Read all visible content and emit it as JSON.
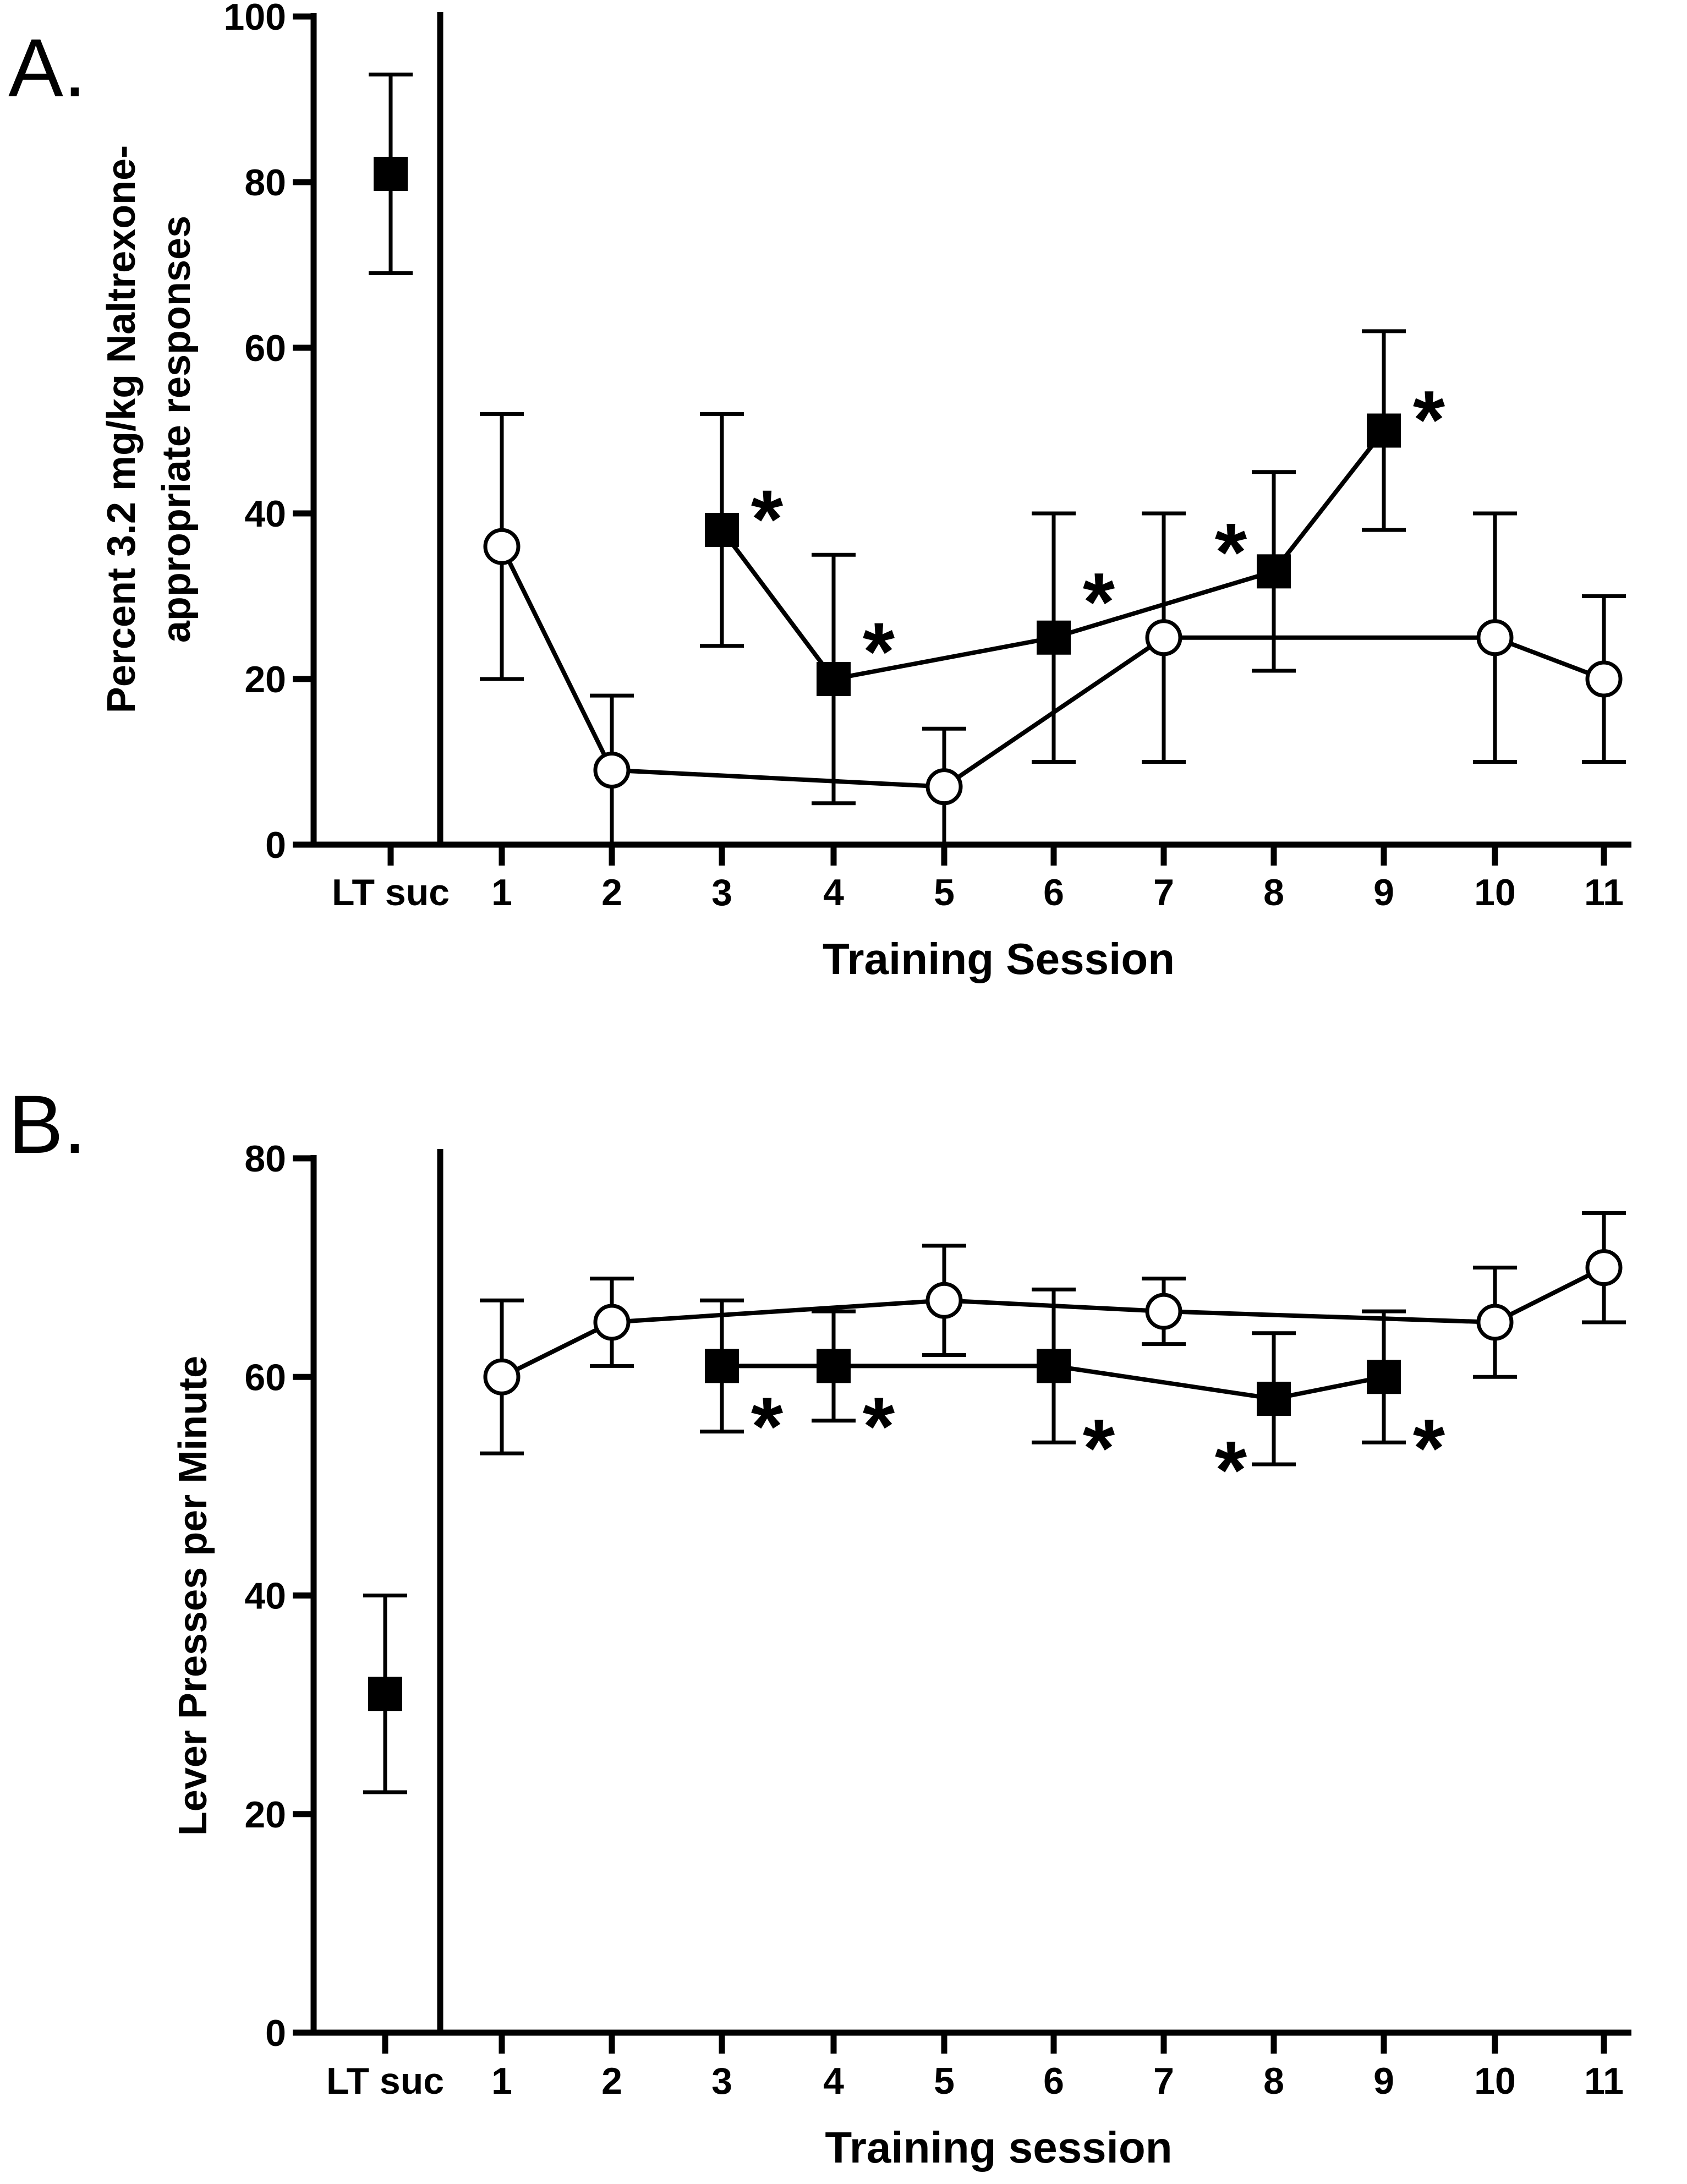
{
  "chart_data": [
    {
      "panel_label": "A.",
      "type": "scatter",
      "xlabel": "Training Session",
      "ylabel_lines": [
        "Percent 3.2 mg/kg Naltrexone-",
        "appropriate responses"
      ],
      "ylim": [
        0,
        100
      ],
      "yticks": [
        0,
        20,
        40,
        60,
        80,
        100
      ],
      "xcategories": [
        "LT suc",
        "1",
        "2",
        "3",
        "4",
        "5",
        "6",
        "7",
        "8",
        "9",
        "10",
        "11"
      ],
      "series": [
        {
          "marker": "open-circle",
          "connected": true,
          "points": [
            {
              "x": "1",
              "y": 36,
              "err_low": 20,
              "err_high": 52
            },
            {
              "x": "2",
              "y": 9,
              "err_low": 0,
              "err_high": 18
            },
            {
              "x": "5",
              "y": 7,
              "err_low": 0,
              "err_high": 14
            },
            {
              "x": "7",
              "y": 25,
              "err_low": 10,
              "err_high": 40
            },
            {
              "x": "10",
              "y": 25,
              "err_low": 10,
              "err_high": 40
            },
            {
              "x": "11",
              "y": 20,
              "err_low": 10,
              "err_high": 30
            }
          ]
        },
        {
          "marker": "filled-square",
          "connected": true,
          "points": [
            {
              "x": "3",
              "y": 38,
              "err_low": 24,
              "err_high": 52
            },
            {
              "x": "4",
              "y": 20,
              "err_low": 5,
              "err_high": 35
            },
            {
              "x": "6",
              "y": 25,
              "err_low": 10,
              "err_high": 40
            },
            {
              "x": "8",
              "y": 33,
              "err_low": 21,
              "err_high": 45
            },
            {
              "x": "9",
              "y": 50,
              "err_low": 38,
              "err_high": 62
            }
          ]
        },
        {
          "marker": "filled-square",
          "connected": false,
          "points": [
            {
              "x": "LT suc",
              "y": 81,
              "err_low": 69,
              "err_high": 93
            }
          ]
        }
      ],
      "annotations": [
        {
          "text": "*",
          "x": "3",
          "side": "right",
          "y": 40
        },
        {
          "text": "*",
          "x": "4",
          "side": "right",
          "y": 24
        },
        {
          "text": "*",
          "x": "6",
          "side": "right",
          "y": 30
        },
        {
          "text": "*",
          "x": "8",
          "side": "left",
          "y": 36
        },
        {
          "text": "*",
          "x": "9",
          "side": "right",
          "y": 52
        }
      ]
    },
    {
      "panel_label": "B.",
      "type": "scatter",
      "xlabel": "Training session",
      "ylabel_lines": [
        "Lever Presses per Minute"
      ],
      "ylim": [
        0,
        80
      ],
      "yticks": [
        0,
        20,
        40,
        60,
        80
      ],
      "xcategories": [
        "LT suc",
        "1",
        "2",
        "3",
        "4",
        "5",
        "6",
        "7",
        "8",
        "9",
        "10",
        "11"
      ],
      "series": [
        {
          "marker": "open-circle",
          "connected": true,
          "points": [
            {
              "x": "1",
              "y": 60,
              "err_low": 53,
              "err_high": 67
            },
            {
              "x": "2",
              "y": 65,
              "err_low": 61,
              "err_high": 69
            },
            {
              "x": "5",
              "y": 67,
              "err_low": 62,
              "err_high": 72
            },
            {
              "x": "7",
              "y": 66,
              "err_low": 63,
              "err_high": 69
            },
            {
              "x": "10",
              "y": 65,
              "err_low": 60,
              "err_high": 70
            },
            {
              "x": "11",
              "y": 70,
              "err_low": 65,
              "err_high": 75
            }
          ]
        },
        {
          "marker": "filled-square",
          "connected": true,
          "points": [
            {
              "x": "3",
              "y": 61,
              "err_low": 55,
              "err_high": 67
            },
            {
              "x": "4",
              "y": 61,
              "err_low": 56,
              "err_high": 66
            },
            {
              "x": "6",
              "y": 61,
              "err_low": 54,
              "err_high": 68
            },
            {
              "x": "8",
              "y": 58,
              "err_low": 52,
              "err_high": 64
            },
            {
              "x": "9",
              "y": 60,
              "err_low": 54,
              "err_high": 66
            }
          ]
        },
        {
          "marker": "filled-square",
          "connected": false,
          "points": [
            {
              "x": "LT suc",
              "y": 31,
              "err_low": 22,
              "err_high": 40
            }
          ]
        }
      ],
      "annotations": [
        {
          "text": "*",
          "x": "3",
          "side": "right",
          "y": 56
        },
        {
          "text": "*",
          "x": "4",
          "side": "right",
          "y": 56
        },
        {
          "text": "*",
          "x": "6",
          "side": "right",
          "y": 54
        },
        {
          "text": "*",
          "x": "8",
          "side": "left",
          "y": 52
        },
        {
          "text": "*",
          "x": "9",
          "side": "right",
          "y": 54
        }
      ]
    }
  ]
}
